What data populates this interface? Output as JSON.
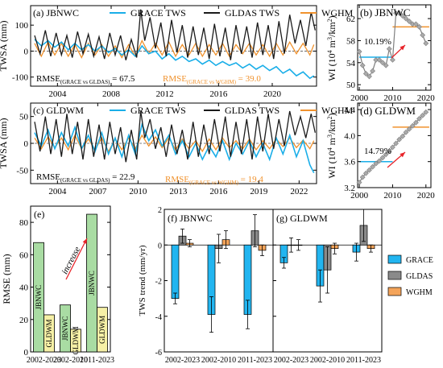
{
  "colors": {
    "grace": "#1aaee8",
    "gldas": "#1a1a1a",
    "wghm": "#f0922d",
    "rmse_green": "#a9dca3",
    "rmse_yellow": "#f6f0a6",
    "bar_grace": "#22b5f0",
    "bar_gldas": "#8a8a8a",
    "bar_wghm": "#f4a45a",
    "wi": "#7f7f7f",
    "arrow": "#e8242a"
  },
  "chart_data": [
    {
      "id": "a",
      "type": "line",
      "panel_label": "(a) JBNWC",
      "ylabel": "TWSA (mm)",
      "xlim": [
        2002,
        2023.3
      ],
      "ylim": [
        -135,
        175
      ],
      "yticks": [
        "100",
        "0",
        "-100"
      ],
      "xticks": [
        "2004",
        "2008",
        "2012",
        "2016",
        "2020"
      ],
      "xtick_values": [
        2004,
        2008,
        2012,
        2016,
        2020
      ],
      "ytick_values": [
        100,
        0,
        -100
      ],
      "legend": [
        "GRACE TWS",
        "GLDAS TWS",
        "WGHM"
      ],
      "rmse_black_main": "RMSE",
      "rmse_black_sub": "(GRACE vs GLDAS)",
      "rmse_black_val": " = 67.5",
      "rmse_orange_main": "RMSE",
      "rmse_orange_sub": "(GRACE vs WGHM)",
      "rmse_orange_val": " = 39.0",
      "series": [
        {
          "name": "GRACE TWS",
          "x": [
            2002.3,
            2002.8,
            2003.3,
            2003.8,
            2004.3,
            2004.8,
            2005.3,
            2005.8,
            2006.3,
            2006.8,
            2007.3,
            2007.8,
            2008.3,
            2008.8,
            2009.3,
            2009.8,
            2010.3,
            2010.8,
            2011.3,
            2011.8,
            2012.3,
            2012.8,
            2013.3,
            2013.8,
            2014.3,
            2014.8,
            2015.3,
            2015.8,
            2016.3,
            2016.8,
            2017.3,
            2017.8,
            2018.3,
            2018.8,
            2019.3,
            2019.8,
            2020.3,
            2020.8,
            2021.3,
            2021.8,
            2022.3,
            2022.8,
            2023.1
          ],
          "values": [
            45,
            20,
            40,
            15,
            35,
            5,
            30,
            5,
            25,
            0,
            20,
            -5,
            10,
            -15,
            5,
            -20,
            20,
            -10,
            0,
            -30,
            -10,
            -35,
            -20,
            -40,
            -30,
            -50,
            -35,
            -55,
            -40,
            -55,
            -45,
            -65,
            -50,
            -70,
            -55,
            -75,
            -60,
            -85,
            -70,
            -95,
            -80,
            -105,
            -95
          ]
        },
        {
          "name": "GLDAS TWS",
          "x": [
            2002.3,
            2002.7,
            2003.1,
            2003.5,
            2003.9,
            2004.3,
            2004.7,
            2005.1,
            2005.5,
            2005.9,
            2006.3,
            2006.7,
            2007.1,
            2007.5,
            2007.9,
            2008.3,
            2008.7,
            2009.1,
            2009.5,
            2009.9,
            2010.2,
            2010.5,
            2010.9,
            2011.3,
            2011.7,
            2012.1,
            2012.5,
            2012.9,
            2013.3,
            2013.7,
            2014.1,
            2014.5,
            2014.9,
            2015.3,
            2015.7,
            2016.1,
            2016.5,
            2016.9,
            2017.3,
            2017.7,
            2018.1,
            2018.5,
            2018.9,
            2019.3,
            2019.7,
            2020.1,
            2020.5,
            2020.9,
            2021.3,
            2021.7,
            2022.1,
            2022.5,
            2022.9,
            2023.2
          ],
          "values": [
            60,
            -10,
            80,
            -20,
            70,
            -15,
            60,
            -25,
            75,
            -10,
            65,
            -20,
            55,
            -30,
            70,
            -15,
            60,
            -35,
            45,
            -25,
            160,
            40,
            130,
            10,
            110,
            -20,
            120,
            -5,
            100,
            -25,
            95,
            -15,
            90,
            -30,
            105,
            -20,
            90,
            -35,
            100,
            -10,
            95,
            -25,
            110,
            -15,
            100,
            -30,
            115,
            -10,
            140,
            30,
            120,
            20,
            150,
            80
          ]
        },
        {
          "name": "WGHM",
          "x": [
            2002.3,
            2002.8,
            2003.3,
            2003.8,
            2004.3,
            2004.8,
            2005.3,
            2005.8,
            2006.3,
            2006.8,
            2007.3,
            2007.8,
            2008.3,
            2008.8,
            2009.3,
            2009.8,
            2010.3,
            2010.8,
            2011.3,
            2011.8,
            2012.3,
            2012.8,
            2013.3,
            2013.8,
            2014.3,
            2014.8,
            2015.3,
            2015.8,
            2016.3,
            2016.8,
            2017.3,
            2017.8,
            2018.3,
            2018.8,
            2019.3,
            2019.8,
            2020.3,
            2020.8,
            2021.3,
            2021.8,
            2022.3,
            2022.8,
            2023.1
          ],
          "values": [
            30,
            -20,
            35,
            -15,
            30,
            -20,
            25,
            -25,
            30,
            -15,
            25,
            -20,
            20,
            -25,
            25,
            -20,
            40,
            -10,
            30,
            -15,
            35,
            -20,
            25,
            -15,
            30,
            -20,
            25,
            -15,
            30,
            -20,
            25,
            -10,
            30,
            -15,
            25,
            -20,
            30,
            -15,
            35,
            -10,
            30,
            -15,
            25
          ]
        }
      ]
    },
    {
      "id": "c",
      "type": "line",
      "panel_label": "(c) GLDWM",
      "ylabel": "TWSA (mm)",
      "xlim": [
        2002,
        2023.3
      ],
      "ylim": [
        -75,
        75
      ],
      "yticks": [
        "50",
        "0",
        "-50"
      ],
      "ytick_values": [
        50,
        0,
        -50
      ],
      "xticks": [
        "2004",
        "2007",
        "2010",
        "2013",
        "2016",
        "2019",
        "2022"
      ],
      "xtick_values": [
        2004,
        2007,
        2010,
        2013,
        2016,
        2019,
        2022
      ],
      "legend": [
        "GRACE TWS",
        "GLDAS TWS",
        "WGHM"
      ],
      "rmse_black_main": "RMSE",
      "rmse_black_sub": "(GRACE vs GLDAS)",
      "rmse_black_val": " = 22.9",
      "rmse_orange_main": "RMSE",
      "rmse_orange_sub": "(GRACE vs WGHM)",
      "rmse_orange_val": " = 19.4",
      "series": [
        {
          "name": "GRACE TWS",
          "x": [
            2002.3,
            2002.8,
            2003.3,
            2003.8,
            2004.3,
            2004.8,
            2005.3,
            2005.8,
            2006.3,
            2006.8,
            2007.3,
            2007.8,
            2008.3,
            2008.8,
            2009.3,
            2009.8,
            2010.3,
            2010.8,
            2011.3,
            2011.8,
            2012.3,
            2012.8,
            2013.3,
            2013.8,
            2014.3,
            2014.8,
            2015.3,
            2015.8,
            2016.3,
            2016.8,
            2017.3,
            2017.8,
            2018.3,
            2018.8,
            2019.3,
            2019.8,
            2020.3,
            2020.8,
            2021.3,
            2021.8,
            2022.3,
            2022.8,
            2023.1
          ],
          "values": [
            20,
            -5,
            25,
            -10,
            20,
            -5,
            30,
            -10,
            15,
            -15,
            20,
            -20,
            10,
            -25,
            15,
            -20,
            35,
            5,
            25,
            -5,
            15,
            -20,
            5,
            -25,
            0,
            -30,
            -5,
            -25,
            5,
            -30,
            0,
            -20,
            5,
            -25,
            0,
            -30,
            10,
            -20,
            15,
            -25,
            5,
            -40,
            -55
          ]
        },
        {
          "name": "GLDAS TWS",
          "x": [
            2002.3,
            2002.7,
            2003.1,
            2003.5,
            2003.9,
            2004.3,
            2004.7,
            2005.1,
            2005.5,
            2005.9,
            2006.3,
            2006.7,
            2007.1,
            2007.5,
            2007.9,
            2008.3,
            2008.7,
            2009.1,
            2009.5,
            2009.9,
            2010.2,
            2010.5,
            2010.9,
            2011.3,
            2011.7,
            2012.1,
            2012.5,
            2012.9,
            2013.3,
            2013.7,
            2014.1,
            2014.5,
            2014.9,
            2015.3,
            2015.7,
            2016.1,
            2016.5,
            2016.9,
            2017.3,
            2017.7,
            2018.1,
            2018.5,
            2018.9,
            2019.3,
            2019.7,
            2020.1,
            2020.5,
            2020.9,
            2021.3,
            2021.7,
            2022.1,
            2022.5,
            2022.9,
            2023.2
          ],
          "values": [
            40,
            -15,
            50,
            -20,
            45,
            -25,
            55,
            -20,
            40,
            -30,
            45,
            -25,
            35,
            -30,
            40,
            -20,
            30,
            -35,
            25,
            -30,
            60,
            10,
            45,
            -10,
            30,
            -25,
            35,
            -20,
            25,
            -30,
            40,
            -25,
            35,
            -20,
            45,
            -15,
            50,
            -25,
            40,
            -20,
            45,
            -30,
            50,
            -15,
            55,
            -10,
            45,
            -5,
            60,
            15,
            50,
            10,
            55,
            20
          ]
        },
        {
          "name": "WGHM",
          "x": [
            2002.3,
            2002.8,
            2003.3,
            2003.8,
            2004.3,
            2004.8,
            2005.3,
            2005.8,
            2006.3,
            2006.8,
            2007.3,
            2007.8,
            2008.3,
            2008.8,
            2009.3,
            2009.8,
            2010.3,
            2010.8,
            2011.3,
            2011.8,
            2012.3,
            2012.8,
            2013.3,
            2013.8,
            2014.3,
            2014.8,
            2015.3,
            2015.8,
            2016.3,
            2016.8,
            2017.3,
            2017.8,
            2018.3,
            2018.8,
            2019.3,
            2019.8,
            2020.3,
            2020.8,
            2021.3,
            2021.8,
            2022.3,
            2022.8,
            2023.1
          ],
          "values": [
            10,
            -10,
            12,
            -8,
            10,
            -12,
            15,
            -10,
            8,
            -12,
            10,
            -15,
            8,
            -12,
            10,
            -10,
            15,
            -5,
            12,
            -8,
            10,
            -12,
            8,
            -10,
            5,
            -15,
            8,
            -12,
            10,
            -8,
            5,
            -10,
            8,
            -12,
            5,
            -10,
            8,
            -6,
            10,
            -8,
            6,
            -10,
            5
          ]
        }
      ]
    },
    {
      "id": "b",
      "type": "line",
      "panel_label": "(b) JBNWC",
      "ylabel_main": "WI (10",
      "ylabel_sup": "4",
      "ylabel_rest": " m",
      "ylabel_sup2": "3",
      "ylabel_tail": "/km",
      "ylabel_sup3": "2",
      "ylabel_end": ")",
      "xlim": [
        1999.5,
        2021.5
      ],
      "ylim": [
        49,
        64.5
      ],
      "yticks": [
        "62",
        "58",
        "54",
        "50"
      ],
      "ytick_values": [
        62,
        58,
        54,
        50
      ],
      "xticks": [
        "2000",
        "2010",
        "2020"
      ],
      "xtick_values": [
        2000,
        2010,
        2020
      ],
      "annotation": "10.19%",
      "mean_before": {
        "x": [
          2000,
          2010
        ],
        "value": 55
      },
      "mean_after": {
        "x": [
          2010,
          2021
        ],
        "value": 60.5
      },
      "x": [
        2000,
        2001,
        2002,
        2003,
        2004,
        2005,
        2006,
        2007,
        2008,
        2009,
        2010,
        2011,
        2012,
        2013,
        2014,
        2015,
        2016,
        2017,
        2018,
        2019,
        2020
      ],
      "values": [
        56,
        53.5,
        52,
        51.5,
        52.5,
        54.5,
        54.5,
        54,
        53.5,
        56.5,
        54.5,
        63,
        63,
        62.5,
        62,
        61.5,
        61,
        61,
        60.5,
        59,
        57.5
      ]
    },
    {
      "id": "d",
      "type": "line",
      "panel_label": "(d) GLDWM",
      "xlim": [
        1999.5,
        2021.5
      ],
      "ylim": [
        3.2,
        4.5
      ],
      "yticks": [
        "4.4",
        "4.0",
        "3.6",
        "3.2"
      ],
      "ytick_values": [
        4.4,
        4.0,
        3.6,
        3.2
      ],
      "xticks": [
        "2000",
        "2010",
        "2020"
      ],
      "xtick_values": [
        2000,
        2010,
        2020
      ],
      "annotation": "14.79%",
      "mean_before": {
        "x": [
          2000,
          2010
        ],
        "value": 3.6
      },
      "mean_after": {
        "x": [
          2010,
          2021
        ],
        "value": 4.13
      },
      "x": [
        2000,
        2001,
        2002,
        2003,
        2004,
        2005,
        2006,
        2007,
        2008,
        2009,
        2010,
        2011,
        2012,
        2013,
        2014,
        2015,
        2016,
        2017,
        2018,
        2019,
        2020
      ],
      "values": [
        3.28,
        3.36,
        3.42,
        3.47,
        3.52,
        3.57,
        3.61,
        3.66,
        3.71,
        3.76,
        3.82,
        3.88,
        3.94,
        3.99,
        4.05,
        4.1,
        4.15,
        4.2,
        4.26,
        4.31,
        4.36
      ]
    },
    {
      "id": "e",
      "type": "bar",
      "panel_label": "(e)",
      "ylabel": "RMSE (mm)",
      "ylim": [
        0,
        90
      ],
      "yticks": [
        "80",
        "60",
        "40",
        "20",
        "0"
      ],
      "ytick_values": [
        80,
        60,
        40,
        20,
        0
      ],
      "categories": [
        "2002-2023",
        "2002-2010",
        "2011-2023"
      ],
      "series": [
        {
          "name": "JBNWC",
          "values": [
            67.5,
            29,
            85
          ]
        },
        {
          "name": "GLDWM",
          "values": [
            22.9,
            14,
            27.5
          ]
        }
      ],
      "annotation": "increase"
    },
    {
      "id": "f",
      "type": "bar",
      "panel_label": "(f) JBNWC",
      "ylabel": "TWS trend (mm/yr)",
      "ylim": [
        -6,
        2
      ],
      "yticks": [
        "2",
        "0",
        "-2",
        "-4",
        "-6"
      ],
      "ytick_values": [
        2,
        0,
        -2,
        -4,
        -6
      ],
      "categories": [
        "2002-2023",
        "2002-2010",
        "2011-2023"
      ],
      "series": [
        {
          "name": "GRACE",
          "values": [
            -3.0,
            -3.9,
            -3.9
          ],
          "err": [
            0.3,
            1.0,
            0.8
          ]
        },
        {
          "name": "GLDAS",
          "values": [
            0.5,
            -0.2,
            0.8
          ],
          "err": [
            0.4,
            0.8,
            0.9
          ]
        },
        {
          "name": "WGHM",
          "values": [
            0.1,
            0.3,
            -0.3
          ],
          "err": [
            0.2,
            0.5,
            0.3
          ]
        }
      ]
    },
    {
      "id": "g",
      "type": "bar",
      "panel_label": "(g) GLDWM",
      "ylim": [
        -6,
        2
      ],
      "categories": [
        "2002-2023",
        "2002-2010",
        "2011-2023"
      ],
      "series": [
        {
          "name": "GRACE",
          "values": [
            -1.0,
            -2.3,
            -0.4
          ],
          "err": [
            0.3,
            0.9,
            0.5
          ]
        },
        {
          "name": "GLDAS",
          "values": [
            0.0,
            -1.4,
            1.1
          ],
          "err": [
            0.4,
            1.3,
            0.9
          ]
        },
        {
          "name": "WGHM",
          "values": [
            0.0,
            -0.2,
            -0.2
          ],
          "err": [
            0.3,
            0.3,
            0.2
          ]
        }
      ]
    }
  ],
  "legend_fg": [
    "GRACE",
    "GLDAS",
    "WGHM"
  ]
}
